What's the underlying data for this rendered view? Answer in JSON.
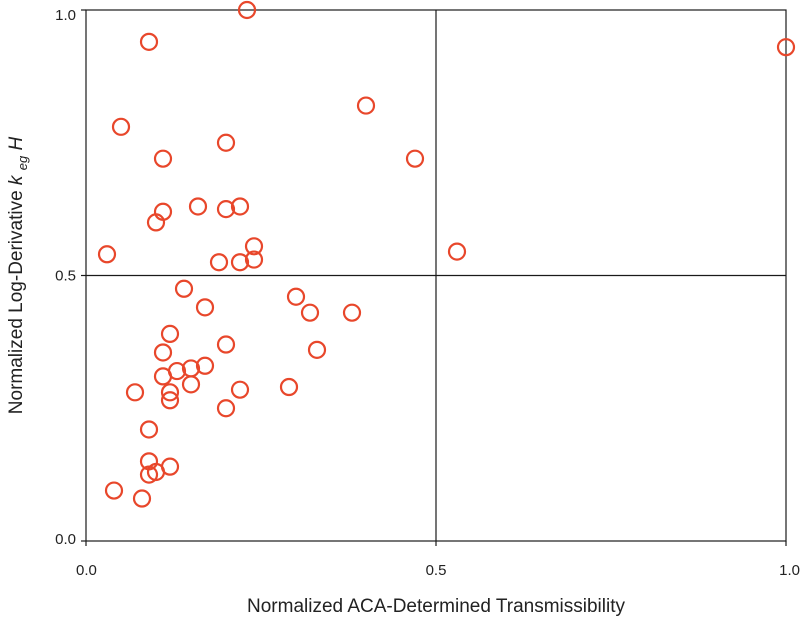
{
  "chart_data": {
    "type": "scatter",
    "xlabel": "Normalized ACA-Determined Transmissibility",
    "ylabel_prefix": "Normalized Log-Derivative ",
    "ylabel_k": "k",
    "ylabel_sub": "eg",
    "ylabel_h": "H",
    "xlim": [
      0.0,
      1.0
    ],
    "ylim": [
      0.0,
      1.0
    ],
    "x_ticks": [
      "0.0",
      "0.5",
      "1.0"
    ],
    "y_ticks": [
      "0.0",
      "0.5",
      "1.0"
    ],
    "quadrant_lines": {
      "x": 0.5,
      "y": 0.5
    },
    "grid": false,
    "marker": "open-circle",
    "marker_color": "#e8472b",
    "points": [
      [
        0.23,
        1.0
      ],
      [
        0.09,
        0.94
      ],
      [
        1.0,
        0.93
      ],
      [
        0.4,
        0.82
      ],
      [
        0.05,
        0.78
      ],
      [
        0.2,
        0.75
      ],
      [
        0.11,
        0.72
      ],
      [
        0.47,
        0.72
      ],
      [
        0.16,
        0.63
      ],
      [
        0.2,
        0.625
      ],
      [
        0.22,
        0.63
      ],
      [
        0.11,
        0.62
      ],
      [
        0.1,
        0.6
      ],
      [
        0.24,
        0.555
      ],
      [
        0.03,
        0.54
      ],
      [
        0.53,
        0.545
      ],
      [
        0.19,
        0.525
      ],
      [
        0.22,
        0.525
      ],
      [
        0.24,
        0.53
      ],
      [
        0.14,
        0.475
      ],
      [
        0.3,
        0.46
      ],
      [
        0.17,
        0.44
      ],
      [
        0.32,
        0.43
      ],
      [
        0.38,
        0.43
      ],
      [
        0.12,
        0.39
      ],
      [
        0.2,
        0.37
      ],
      [
        0.33,
        0.36
      ],
      [
        0.11,
        0.355
      ],
      [
        0.17,
        0.33
      ],
      [
        0.15,
        0.325
      ],
      [
        0.13,
        0.32
      ],
      [
        0.11,
        0.31
      ],
      [
        0.15,
        0.295
      ],
      [
        0.12,
        0.28
      ],
      [
        0.07,
        0.28
      ],
      [
        0.22,
        0.285
      ],
      [
        0.29,
        0.29
      ],
      [
        0.12,
        0.265
      ],
      [
        0.2,
        0.25
      ],
      [
        0.09,
        0.21
      ],
      [
        0.09,
        0.15
      ],
      [
        0.12,
        0.14
      ],
      [
        0.1,
        0.13
      ],
      [
        0.09,
        0.125
      ],
      [
        0.04,
        0.095
      ],
      [
        0.08,
        0.08
      ]
    ]
  }
}
